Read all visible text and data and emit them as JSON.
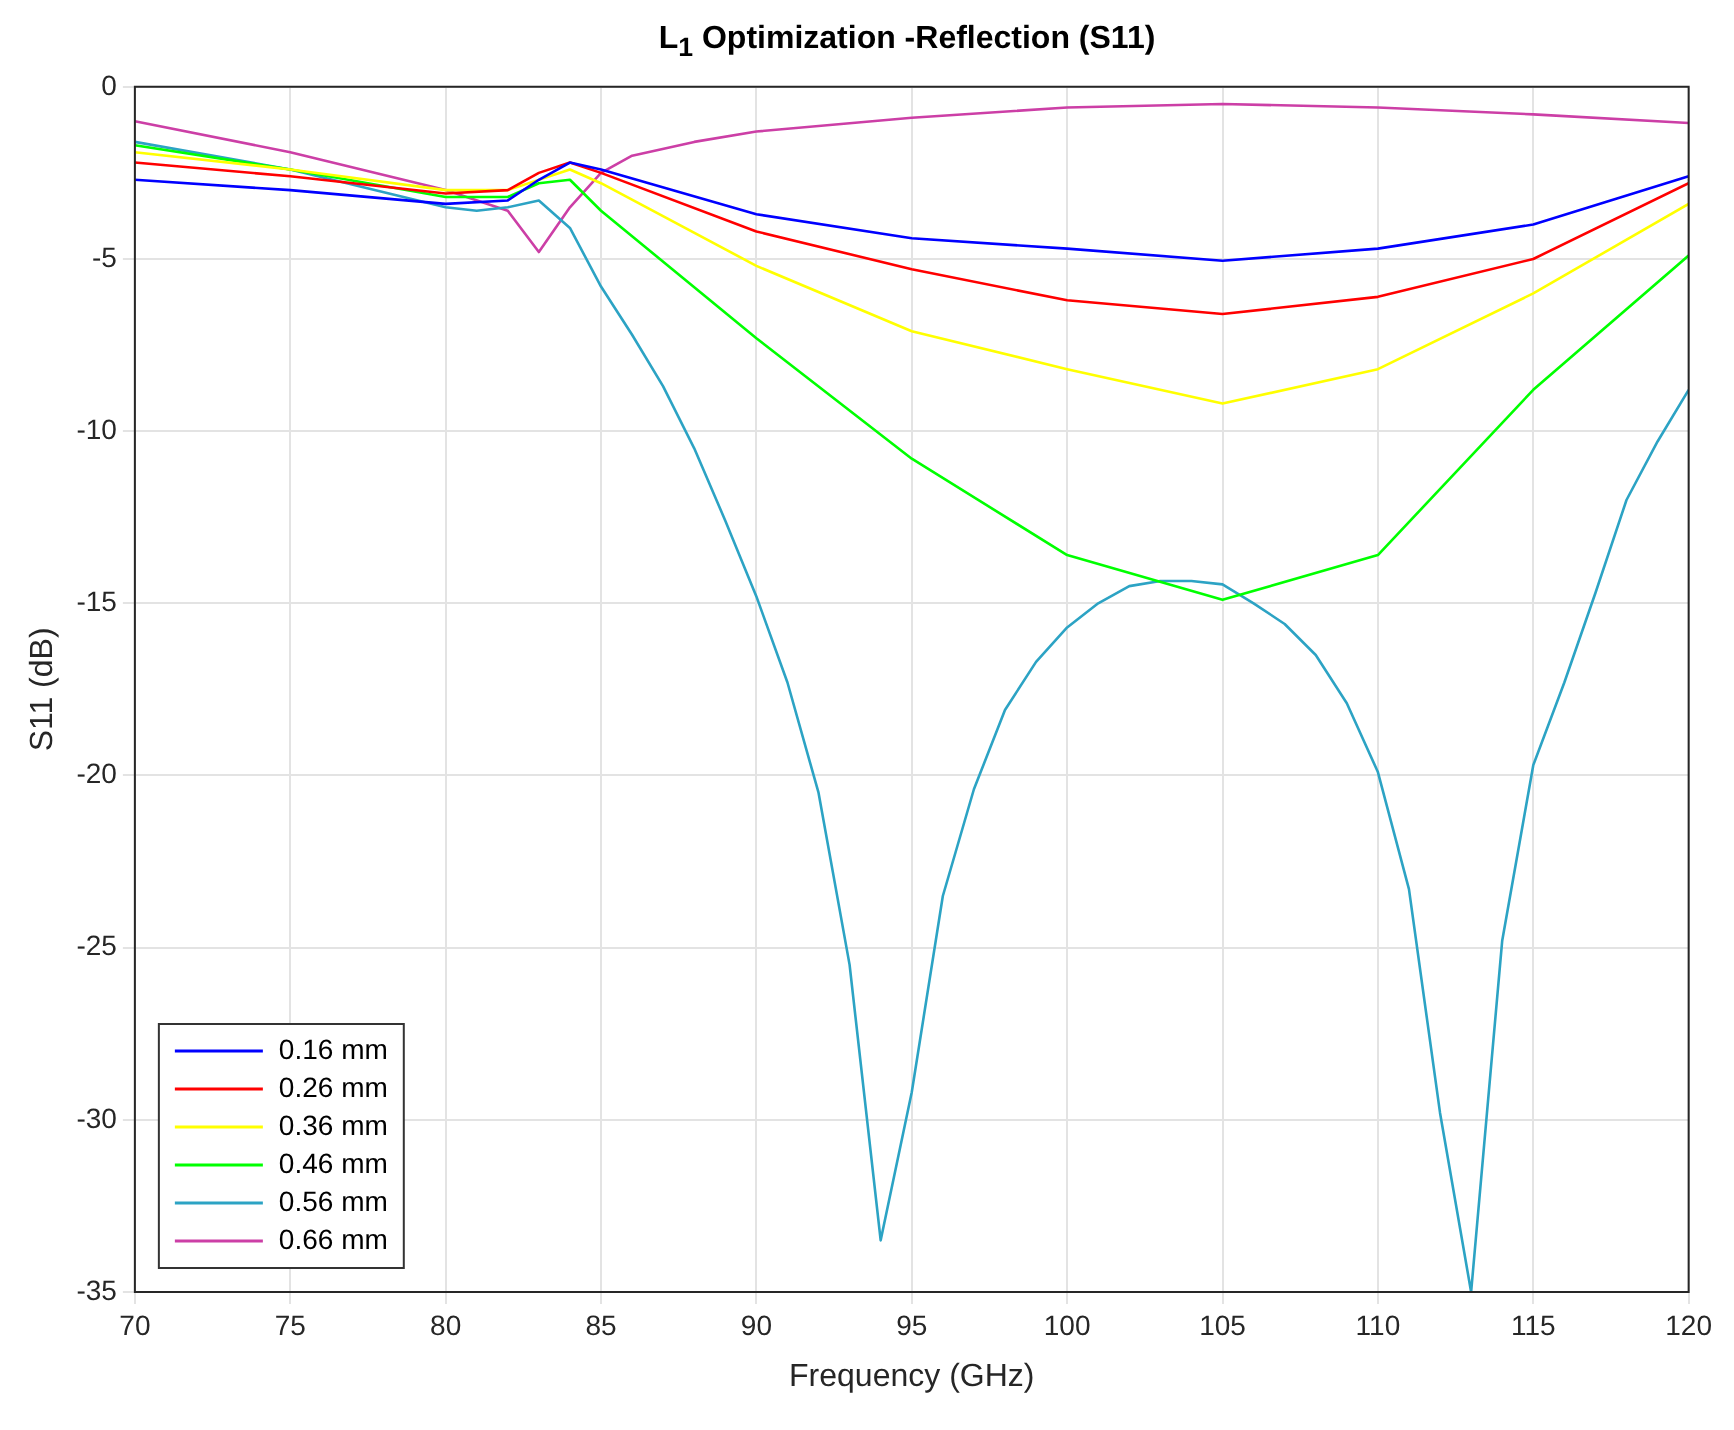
{
  "chart_data": {
    "type": "line",
    "title": "L$_{1}$ Optimization -Reflection (S11)",
    "xlabel": "Frequency (GHz)",
    "ylabel": "S11 (dB)",
    "xlim": [
      70,
      120
    ],
    "xticks": [
      70,
      75,
      80,
      85,
      90,
      95,
      100,
      105,
      110,
      115,
      120
    ],
    "ylim": [
      -35,
      0
    ],
    "yticks": [
      -35,
      -30,
      -25,
      -20,
      -15,
      -10,
      -5,
      0
    ],
    "grid": true,
    "legend": "bottom left",
    "line_style": "solid",
    "marker": "none",
    "series": [
      {
        "name": "0.16 mm",
        "color": "#0000ff",
        "x": [
          70,
          75,
          80,
          82,
          83,
          84,
          85,
          90,
          95,
          100,
          105,
          110,
          115,
          120
        ],
        "values": [
          -2.7,
          -3.0,
          -3.4,
          -3.3,
          -2.7,
          -2.2,
          -2.4,
          -3.7,
          -4.4,
          -4.7,
          -5.05,
          -4.7,
          -4.0,
          -2.6
        ]
      },
      {
        "name": "0.26 mm",
        "color": "#ff0000",
        "x": [
          70,
          75,
          80,
          82,
          83,
          84,
          85,
          90,
          95,
          100,
          105,
          110,
          115,
          120
        ],
        "values": [
          -2.2,
          -2.6,
          -3.1,
          -3.0,
          -2.5,
          -2.2,
          -2.5,
          -4.2,
          -5.3,
          -6.2,
          -6.6,
          -6.1,
          -5.0,
          -2.8
        ]
      },
      {
        "name": "0.36 mm",
        "color": "#ffff00",
        "x": [
          70,
          75,
          80,
          82,
          84,
          85,
          90,
          95,
          100,
          105,
          110,
          115,
          120
        ],
        "values": [
          -1.9,
          -2.4,
          -3.0,
          -3.0,
          -2.4,
          -2.8,
          -5.2,
          -7.1,
          -8.2,
          -9.2,
          -8.2,
          -6.0,
          -3.4
        ]
      },
      {
        "name": "0.46 mm",
        "color": "#00ff00",
        "x": [
          70,
          75,
          80,
          82,
          83,
          84,
          85,
          90,
          95,
          100,
          105,
          110,
          115,
          120
        ],
        "values": [
          -1.7,
          -2.4,
          -3.2,
          -3.2,
          -2.8,
          -2.7,
          -3.6,
          -7.3,
          -10.8,
          -13.6,
          -14.9,
          -13.6,
          -8.8,
          -4.9
        ]
      },
      {
        "name": "0.56 mm",
        "color": "#2ca3c4",
        "x": [
          70,
          75,
          80,
          81,
          82,
          83,
          84,
          85,
          86,
          87,
          88,
          89,
          90,
          91,
          92,
          93,
          94,
          95,
          96,
          97,
          98,
          99,
          100,
          101,
          102,
          103,
          104,
          105,
          106,
          107,
          108,
          109,
          110,
          111,
          112,
          113,
          114,
          115,
          116,
          117,
          118,
          119,
          120
        ],
        "values": [
          -1.6,
          -2.4,
          -3.5,
          -3.6,
          -3.5,
          -3.3,
          -4.1,
          -5.8,
          -7.2,
          -8.7,
          -10.5,
          -12.6,
          -14.8,
          -17.3,
          -20.5,
          -25.5,
          -33.5,
          -29.2,
          -23.5,
          -20.4,
          -18.1,
          -16.7,
          -15.7,
          -15.0,
          -14.5,
          -14.35,
          -14.35,
          -14.45,
          -15.0,
          -15.6,
          -16.5,
          -17.9,
          -19.9,
          -23.3,
          -29.8,
          -35,
          -24.8,
          -19.7,
          -17.3,
          -14.7,
          -12.0,
          -10.3,
          -8.8
        ]
      },
      {
        "name": "0.66 mm",
        "color": "#cc3fa6",
        "x": [
          70,
          75,
          80,
          82,
          83,
          84,
          85,
          86,
          88,
          90,
          95,
          100,
          105,
          110,
          115,
          120
        ],
        "values": [
          -1.0,
          -1.9,
          -3.0,
          -3.6,
          -4.8,
          -3.5,
          -2.5,
          -2.0,
          -1.6,
          -1.3,
          -0.9,
          -0.6,
          -0.5,
          -0.6,
          -0.8,
          -1.05
        ]
      }
    ]
  }
}
